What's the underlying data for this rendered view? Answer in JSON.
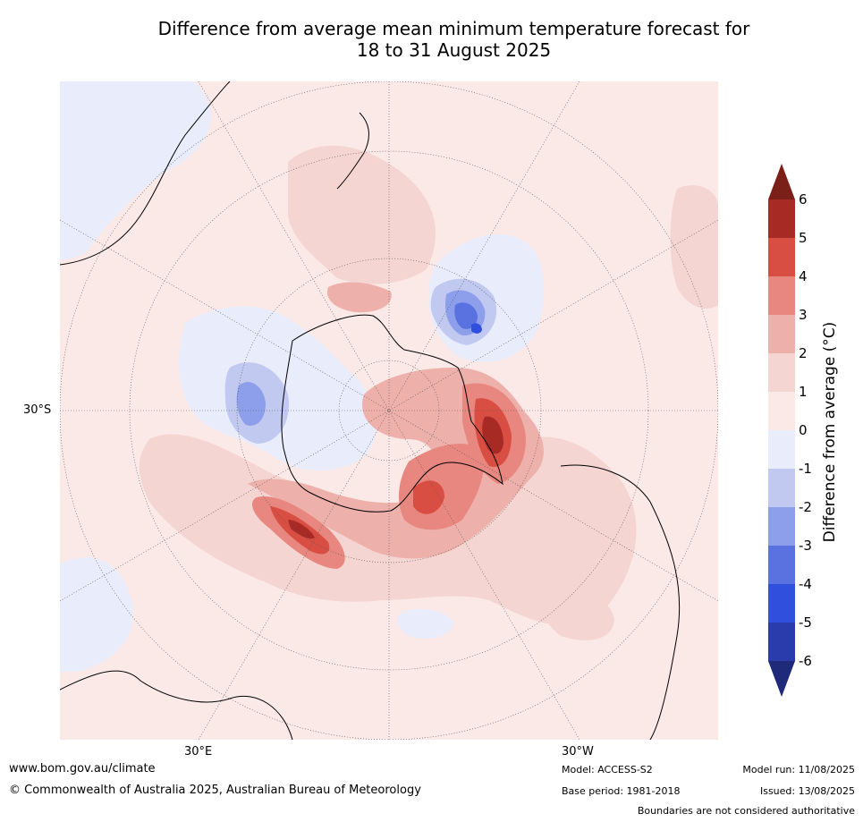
{
  "title": {
    "line1": "Difference from average mean minimum temperature forecast for",
    "line2": "18 to 31 August 2025"
  },
  "map": {
    "projection": "south-polar-stereographic",
    "lat_label": "30°S",
    "lon_labels": {
      "east": "30°E",
      "west": "30°W"
    },
    "land_outline_color": "#000000",
    "graticule_color": "#555555",
    "region_labels": [],
    "regions": [
      {
        "name": "cold-pool-indian-ocean-antarctica",
        "category": -3
      },
      {
        "name": "cold-pool-south-pacific",
        "category": -4
      },
      {
        "name": "warm-anomaly-weddell-sea",
        "category": 5
      },
      {
        "name": "warm-anomaly-southern-ocean-atlantic",
        "category": 4
      },
      {
        "name": "warm-anomaly-ross-sea",
        "category": 3
      }
    ]
  },
  "colorbar": {
    "title": "Difference from average (°C)",
    "ticks": [
      "6",
      "5",
      "4",
      "3",
      "2",
      "1",
      "0",
      "-1",
      "-2",
      "-3",
      "-4",
      "-5",
      "-6"
    ],
    "bands": [
      {
        "from": 5,
        "to": 6,
        "color": "#a82a25"
      },
      {
        "from": 4,
        "to": 5,
        "color": "#d94e42"
      },
      {
        "from": 3,
        "to": 4,
        "color": "#e8877f"
      },
      {
        "from": 2,
        "to": 3,
        "color": "#eeb0aa"
      },
      {
        "from": 1,
        "to": 2,
        "color": "#f4d5d2"
      },
      {
        "from": 0,
        "to": 1,
        "color": "#fbe9e7"
      },
      {
        "from": -1,
        "to": 0,
        "color": "#e8ecfb"
      },
      {
        "from": -2,
        "to": -1,
        "color": "#c1c9f1"
      },
      {
        "from": -3,
        "to": -2,
        "color": "#8d9eeb"
      },
      {
        "from": -4,
        "to": -3,
        "color": "#5a71e0"
      },
      {
        "from": -5,
        "to": -4,
        "color": "#2f4fdc"
      },
      {
        "from": -6,
        "to": -5,
        "color": "#2a3cab"
      }
    ],
    "upper_extension_color": "#7a2018",
    "lower_extension_color": "#1f2a7a"
  },
  "footer": {
    "website": "www.bom.gov.au/climate",
    "copyright": "© Commonwealth of Australia 2025, Australian Bureau of Meteorology",
    "model": "Model: ACCESS-S2",
    "base_period": "Base period: 1981-2018",
    "model_run": "Model run: 11/08/2025",
    "issued": "Issued: 13/08/2025",
    "disclaimer": "Boundaries are not considered authoritative"
  }
}
